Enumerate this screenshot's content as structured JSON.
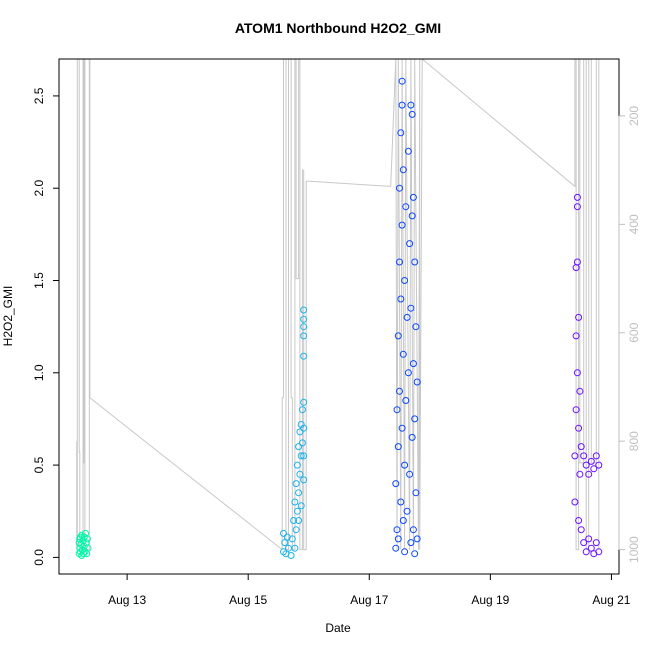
{
  "chart_data": {
    "type": "scatter",
    "title": "ATOM1 Northbound H2O2_GMI",
    "xlabel": "Date",
    "ylabel": "H2O2_GMI",
    "x_is_date": true,
    "xlim": [
      "2016-08-11T21:00",
      "2016-08-21T03:00"
    ],
    "ylim": [
      -0.09,
      2.7
    ],
    "y_ticks": [
      0.0,
      0.5,
      1.0,
      1.5,
      2.0,
      2.5
    ],
    "x_ticks": [
      {
        "value": "2016-08-13T00:00",
        "label": "Aug 13"
      },
      {
        "value": "2016-08-15T00:00",
        "label": "Aug 15"
      },
      {
        "value": "2016-08-17T00:00",
        "label": "Aug 17"
      },
      {
        "value": "2016-08-19T00:00",
        "label": "Aug 19"
      },
      {
        "value": "2016-08-21T00:00",
        "label": "Aug 21"
      }
    ],
    "right_axis": {
      "label": "",
      "reversed": true,
      "ticks": [
        200,
        400,
        600,
        800,
        1000
      ],
      "color": "#bfbfbf",
      "range": [
        95,
        1045
      ]
    },
    "grid": false,
    "legend": "none",
    "series": [
      {
        "color": "#00f5a8",
        "points": [
          [
            "2016-08-12T05:00",
            0.02
          ],
          [
            "2016-08-12T05:00",
            0.08
          ],
          [
            "2016-08-12T05:15",
            0.05
          ],
          [
            "2016-08-12T05:15",
            0.1
          ],
          [
            "2016-08-12T05:30",
            0.03
          ],
          [
            "2016-08-12T05:30",
            0.11
          ],
          [
            "2016-08-12T05:45",
            0.07
          ],
          [
            "2016-08-12T06:00",
            0.01
          ],
          [
            "2016-08-12T06:00",
            0.12
          ],
          [
            "2016-08-12T06:15",
            0.04
          ],
          [
            "2016-08-12T06:30",
            0.09
          ],
          [
            "2016-08-12T06:45",
            0.02
          ],
          [
            "2016-08-12T07:00",
            0.11
          ],
          [
            "2016-08-12T07:00",
            0.06
          ],
          [
            "2016-08-12T07:15",
            0.03
          ],
          [
            "2016-08-12T07:30",
            0.13
          ],
          [
            "2016-08-12T07:45",
            0.08
          ],
          [
            "2016-08-12T08:00",
            0.02
          ],
          [
            "2016-08-12T08:15",
            0.1
          ],
          [
            "2016-08-12T08:30",
            0.05
          ]
        ]
      },
      {
        "color": "#1ab3ee",
        "points": [
          [
            "2016-08-15T14:00",
            0.03
          ],
          [
            "2016-08-15T14:00",
            0.13
          ],
          [
            "2016-08-15T14:30",
            0.08
          ],
          [
            "2016-08-15T15:00",
            0.02
          ],
          [
            "2016-08-15T15:30",
            0.11
          ],
          [
            "2016-08-15T16:00",
            0.05
          ],
          [
            "2016-08-15T17:00",
            0.01
          ],
          [
            "2016-08-15T17:30",
            0.1
          ],
          [
            "2016-08-15T18:00",
            0.2
          ],
          [
            "2016-08-15T18:30",
            0.3
          ],
          [
            "2016-08-15T18:30",
            0.05
          ],
          [
            "2016-08-15T19:00",
            0.4
          ],
          [
            "2016-08-15T19:00",
            0.15
          ],
          [
            "2016-08-15T19:30",
            0.5
          ],
          [
            "2016-08-15T19:30",
            0.25
          ],
          [
            "2016-08-15T20:00",
            0.6
          ],
          [
            "2016-08-15T20:00",
            0.35
          ],
          [
            "2016-08-15T20:30",
            0.68
          ],
          [
            "2016-08-15T20:30",
            0.45
          ],
          [
            "2016-08-15T21:00",
            0.72
          ],
          [
            "2016-08-15T21:00",
            0.55
          ],
          [
            "2016-08-15T21:30",
            0.8
          ],
          [
            "2016-08-15T21:30",
            0.62
          ],
          [
            "2016-08-15T22:00",
            0.84
          ],
          [
            "2016-08-15T22:00",
            0.7
          ],
          [
            "2016-08-15T22:00",
            1.09
          ],
          [
            "2016-08-15T22:00",
            1.2
          ],
          [
            "2016-08-15T22:00",
            1.25
          ],
          [
            "2016-08-15T22:00",
            1.29
          ],
          [
            "2016-08-15T22:00",
            1.34
          ],
          [
            "2016-08-15T21:00",
            0.28
          ],
          [
            "2016-08-15T20:00",
            0.2
          ],
          [
            "2016-08-15T22:00",
            0.42
          ],
          [
            "2016-08-15T22:00",
            0.55
          ]
        ]
      },
      {
        "color": "#0a47ff",
        "points": [
          [
            "2016-08-17T10:30",
            0.05
          ],
          [
            "2016-08-17T10:30",
            0.4
          ],
          [
            "2016-08-17T11:00",
            0.8
          ],
          [
            "2016-08-17T11:00",
            0.15
          ],
          [
            "2016-08-17T11:30",
            1.2
          ],
          [
            "2016-08-17T11:30",
            0.6
          ],
          [
            "2016-08-17T11:30",
            0.1
          ],
          [
            "2016-08-17T12:00",
            1.6
          ],
          [
            "2016-08-17T12:00",
            2.0
          ],
          [
            "2016-08-17T12:00",
            0.9
          ],
          [
            "2016-08-17T12:30",
            2.3
          ],
          [
            "2016-08-17T12:30",
            1.4
          ],
          [
            "2016-08-17T12:30",
            0.3
          ],
          [
            "2016-08-17T13:00",
            2.58
          ],
          [
            "2016-08-17T13:00",
            2.45
          ],
          [
            "2016-08-17T13:00",
            1.8
          ],
          [
            "2016-08-17T13:00",
            0.7
          ],
          [
            "2016-08-17T13:30",
            2.1
          ],
          [
            "2016-08-17T13:30",
            1.1
          ],
          [
            "2016-08-17T13:30",
            0.2
          ],
          [
            "2016-08-17T14:00",
            1.5
          ],
          [
            "2016-08-17T14:00",
            0.5
          ],
          [
            "2016-08-17T14:00",
            0.03
          ],
          [
            "2016-08-17T14:30",
            1.9
          ],
          [
            "2016-08-17T14:30",
            0.85
          ],
          [
            "2016-08-17T15:00",
            1.3
          ],
          [
            "2016-08-17T15:00",
            0.25
          ],
          [
            "2016-08-17T15:30",
            2.2
          ],
          [
            "2016-08-17T15:30",
            1.0
          ],
          [
            "2016-08-17T16:00",
            1.7
          ],
          [
            "2016-08-17T16:00",
            0.45
          ],
          [
            "2016-08-17T16:30",
            2.45
          ],
          [
            "2016-08-17T16:30",
            1.35
          ],
          [
            "2016-08-17T16:30",
            0.08
          ],
          [
            "2016-08-17T17:00",
            2.4
          ],
          [
            "2016-08-17T17:00",
            1.85
          ],
          [
            "2016-08-17T17:00",
            0.65
          ],
          [
            "2016-08-17T17:30",
            1.95
          ],
          [
            "2016-08-17T17:30",
            1.05
          ],
          [
            "2016-08-17T17:30",
            0.15
          ],
          [
            "2016-08-17T18:00",
            1.6
          ],
          [
            "2016-08-17T18:00",
            0.75
          ],
          [
            "2016-08-17T18:00",
            0.02
          ],
          [
            "2016-08-17T18:30",
            1.25
          ],
          [
            "2016-08-17T18:30",
            0.35
          ],
          [
            "2016-08-17T19:00",
            0.95
          ],
          [
            "2016-08-17T19:00",
            0.1
          ]
        ]
      },
      {
        "color": "#6a11ff",
        "points": [
          [
            "2016-08-20T09:30",
            0.3
          ],
          [
            "2016-08-20T09:30",
            0.55
          ],
          [
            "2016-08-20T10:00",
            1.2
          ],
          [
            "2016-08-20T10:00",
            1.57
          ],
          [
            "2016-08-20T10:00",
            0.8
          ],
          [
            "2016-08-20T10:30",
            1.95
          ],
          [
            "2016-08-20T10:30",
            1.9
          ],
          [
            "2016-08-20T10:30",
            1.6
          ],
          [
            "2016-08-20T10:30",
            1.0
          ],
          [
            "2016-08-20T11:00",
            1.3
          ],
          [
            "2016-08-20T11:00",
            0.7
          ],
          [
            "2016-08-20T11:00",
            0.2
          ],
          [
            "2016-08-20T11:30",
            0.9
          ],
          [
            "2016-08-20T11:30",
            0.45
          ],
          [
            "2016-08-20T12:00",
            0.6
          ],
          [
            "2016-08-20T12:00",
            0.15
          ],
          [
            "2016-08-20T13:00",
            0.55
          ],
          [
            "2016-08-20T13:00",
            0.08
          ],
          [
            "2016-08-20T14:00",
            0.5
          ],
          [
            "2016-08-20T14:00",
            0.03
          ],
          [
            "2016-08-20T15:00",
            0.45
          ],
          [
            "2016-08-20T15:00",
            0.1
          ],
          [
            "2016-08-20T16:00",
            0.52
          ],
          [
            "2016-08-20T16:00",
            0.05
          ],
          [
            "2016-08-20T17:00",
            0.48
          ],
          [
            "2016-08-20T17:00",
            0.02
          ],
          [
            "2016-08-20T18:00",
            0.55
          ],
          [
            "2016-08-20T18:00",
            0.08
          ],
          [
            "2016-08-20T19:00",
            0.5
          ],
          [
            "2016-08-20T19:00",
            0.03
          ]
        ]
      }
    ],
    "altitude_trace": {
      "color": "#c8c8c8",
      "axis": "right",
      "points": [
        [
          "2016-08-12T04:00",
          1000
        ],
        [
          "2016-08-12T04:00",
          800
        ],
        [
          "2016-08-12T04:15",
          1000
        ],
        [
          "2016-08-12T04:15",
          95
        ],
        [
          "2016-08-12T05:00",
          95
        ],
        [
          "2016-08-12T05:00",
          820
        ],
        [
          "2016-08-12T05:15",
          820
        ],
        [
          "2016-08-12T05:15",
          1000
        ],
        [
          "2016-08-12T06:30",
          1000
        ],
        [
          "2016-08-12T06:30",
          95
        ],
        [
          "2016-08-12T06:45",
          95
        ],
        [
          "2016-08-12T06:45",
          840
        ],
        [
          "2016-08-12T07:00",
          840
        ],
        [
          "2016-08-12T07:00",
          95
        ],
        [
          "2016-08-12T07:15",
          95
        ],
        [
          "2016-08-12T07:15",
          1000
        ],
        [
          "2016-08-12T09:00",
          1000
        ],
        [
          "2016-08-12T09:00",
          95
        ],
        [
          "2016-08-12T09:15",
          95
        ],
        [
          "2016-08-12T09:15",
          720
        ],
        [
          "2016-08-15T13:30",
          1000
        ],
        [
          "2016-08-15T13:30",
          720
        ],
        [
          "2016-08-15T14:00",
          720
        ],
        [
          "2016-08-15T14:00",
          95
        ],
        [
          "2016-08-15T15:00",
          95
        ],
        [
          "2016-08-15T15:00",
          1000
        ],
        [
          "2016-08-15T16:00",
          1000
        ],
        [
          "2016-08-15T16:00",
          95
        ],
        [
          "2016-08-15T17:00",
          95
        ],
        [
          "2016-08-15T17:00",
          720
        ],
        [
          "2016-08-15T17:30",
          720
        ],
        [
          "2016-08-15T17:30",
          1000
        ],
        [
          "2016-08-15T18:30",
          1000
        ],
        [
          "2016-08-15T18:30",
          95
        ],
        [
          "2016-08-15T19:00",
          95
        ],
        [
          "2016-08-15T19:00",
          500
        ],
        [
          "2016-08-15T20:00",
          500
        ],
        [
          "2016-08-15T20:00",
          95
        ],
        [
          "2016-08-15T20:30",
          95
        ],
        [
          "2016-08-15T20:30",
          1000
        ],
        [
          "2016-08-15T21:30",
          1000
        ],
        [
          "2016-08-15T21:30",
          300
        ],
        [
          "2016-08-15T22:00",
          300
        ],
        [
          "2016-08-15T22:00",
          1000
        ],
        [
          "2016-08-15T23:00",
          1000
        ],
        [
          "2016-08-15T23:00",
          360
        ],
        [
          "2016-08-15T23:00",
          320
        ],
        [
          "2016-08-17T08:30",
          330
        ],
        [
          "2016-08-17T10:30",
          95
        ],
        [
          "2016-08-17T11:00",
          1000
        ],
        [
          "2016-08-17T11:30",
          95
        ],
        [
          "2016-08-17T12:30",
          1000
        ],
        [
          "2016-08-17T13:00",
          95
        ],
        [
          "2016-08-17T14:00",
          1000
        ],
        [
          "2016-08-17T14:30",
          95
        ],
        [
          "2016-08-17T16:00",
          1000
        ],
        [
          "2016-08-17T16:30",
          95
        ],
        [
          "2016-08-17T17:30",
          1000
        ],
        [
          "2016-08-17T18:00",
          95
        ],
        [
          "2016-08-17T19:30",
          1000
        ],
        [
          "2016-08-17T20:00",
          95
        ],
        [
          "2016-08-17T20:00",
          1000
        ],
        [
          "2016-08-17T21:00",
          95
        ],
        [
          "2016-08-20T09:30",
          330
        ],
        [
          "2016-08-20T09:30",
          95
        ],
        [
          "2016-08-20T10:00",
          95
        ],
        [
          "2016-08-20T10:00",
          1000
        ],
        [
          "2016-08-20T11:00",
          1000
        ],
        [
          "2016-08-20T11:00",
          95
        ],
        [
          "2016-08-20T11:30",
          95
        ],
        [
          "2016-08-20T11:30",
          840
        ],
        [
          "2016-08-20T13:00",
          840
        ],
        [
          "2016-08-20T13:00",
          95
        ],
        [
          "2016-08-20T14:00",
          95
        ],
        [
          "2016-08-20T14:00",
          1000
        ],
        [
          "2016-08-20T15:00",
          1000
        ],
        [
          "2016-08-20T15:00",
          95
        ],
        [
          "2016-08-20T16:00",
          95
        ],
        [
          "2016-08-20T16:00",
          840
        ],
        [
          "2016-08-20T18:00",
          840
        ],
        [
          "2016-08-20T18:00",
          95
        ],
        [
          "2016-08-20T19:00",
          95
        ],
        [
          "2016-08-20T19:00",
          1000
        ]
      ]
    }
  }
}
